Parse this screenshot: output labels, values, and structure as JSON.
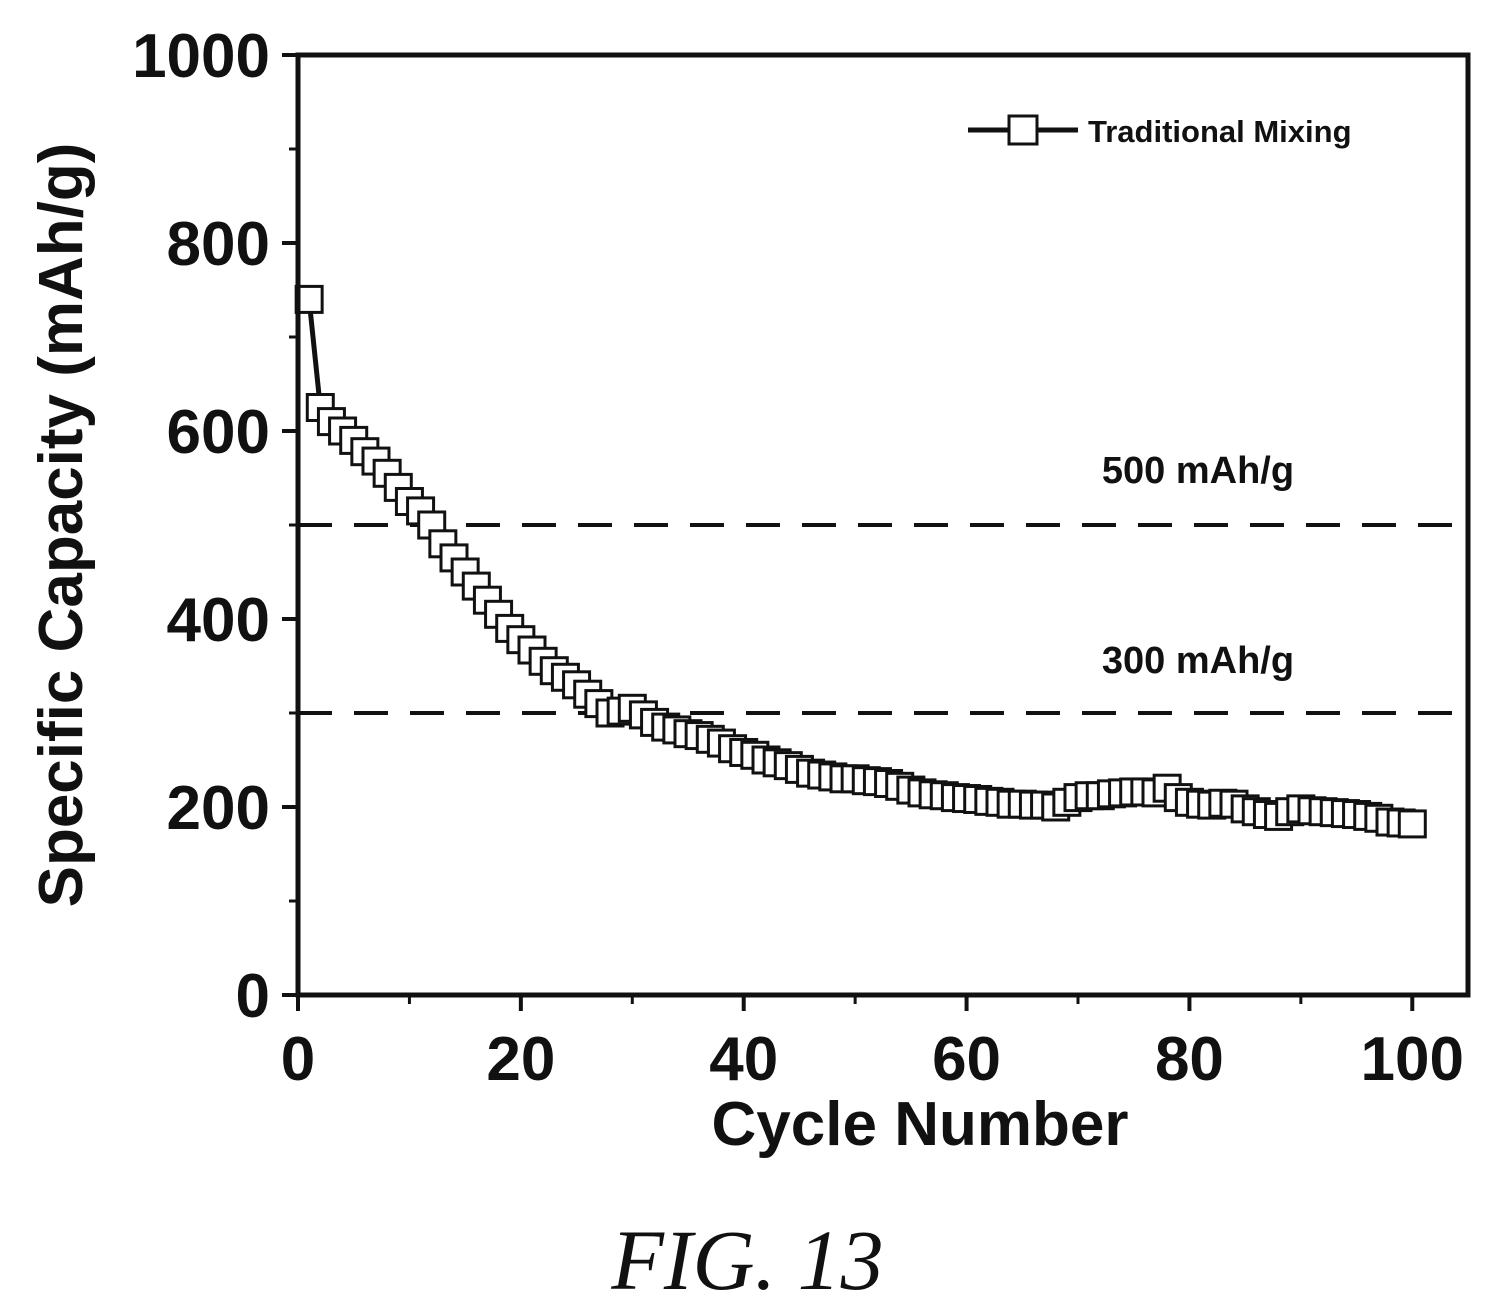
{
  "figure": {
    "caption": "FIG. 13"
  },
  "chart_data": {
    "type": "scatter",
    "title": "",
    "xlabel": "Cycle Number",
    "ylabel": "Specific Capacity (mAh/g)",
    "xlim": [
      0,
      105
    ],
    "ylim": [
      0,
      1000
    ],
    "xticks": [
      0,
      20,
      40,
      60,
      80,
      100
    ],
    "yticks": [
      0,
      200,
      400,
      600,
      800,
      1000
    ],
    "grid": false,
    "legend_position": "top-right",
    "series": [
      {
        "name": "Traditional Mixing",
        "marker": "open-square",
        "line": true,
        "x": [
          1,
          2,
          3,
          4,
          5,
          6,
          7,
          8,
          9,
          10,
          11,
          12,
          13,
          14,
          15,
          16,
          17,
          18,
          19,
          20,
          21,
          22,
          23,
          24,
          25,
          26,
          27,
          28,
          29,
          30,
          31,
          32,
          33,
          34,
          35,
          36,
          37,
          38,
          39,
          40,
          41,
          42,
          43,
          44,
          45,
          46,
          47,
          48,
          49,
          50,
          51,
          52,
          53,
          54,
          55,
          56,
          57,
          58,
          59,
          60,
          61,
          62,
          63,
          64,
          65,
          66,
          67,
          68,
          69,
          70,
          71,
          72,
          73,
          74,
          75,
          76,
          77,
          78,
          79,
          80,
          81,
          82,
          83,
          84,
          85,
          86,
          87,
          88,
          89,
          90,
          91,
          92,
          93,
          94,
          95,
          96,
          97,
          98,
          99,
          100
        ],
        "values": [
          740,
          625,
          610,
          600,
          590,
          578,
          568,
          555,
          540,
          525,
          515,
          500,
          480,
          465,
          450,
          435,
          420,
          405,
          390,
          378,
          367,
          355,
          345,
          338,
          330,
          320,
          310,
          300,
          302,
          305,
          298,
          290,
          285,
          282,
          278,
          276,
          272,
          268,
          262,
          258,
          255,
          250,
          247,
          244,
          240,
          236,
          234,
          232,
          230,
          230,
          228,
          227,
          225,
          222,
          218,
          215,
          213,
          212,
          210,
          209,
          208,
          206,
          205,
          203,
          203,
          202,
          202,
          200,
          205,
          210,
          212,
          212,
          214,
          215,
          216,
          216,
          215,
          220,
          210,
          205,
          203,
          202,
          204,
          203,
          198,
          195,
          192,
          190,
          195,
          198,
          196,
          195,
          194,
          193,
          192,
          190,
          188,
          184,
          183,
          182
        ]
      }
    ],
    "annotations": [
      {
        "text": "500 mAh/g",
        "y": 500,
        "style": "dashed"
      },
      {
        "text": "300 mAh/g",
        "y": 300,
        "style": "dashed"
      }
    ]
  }
}
